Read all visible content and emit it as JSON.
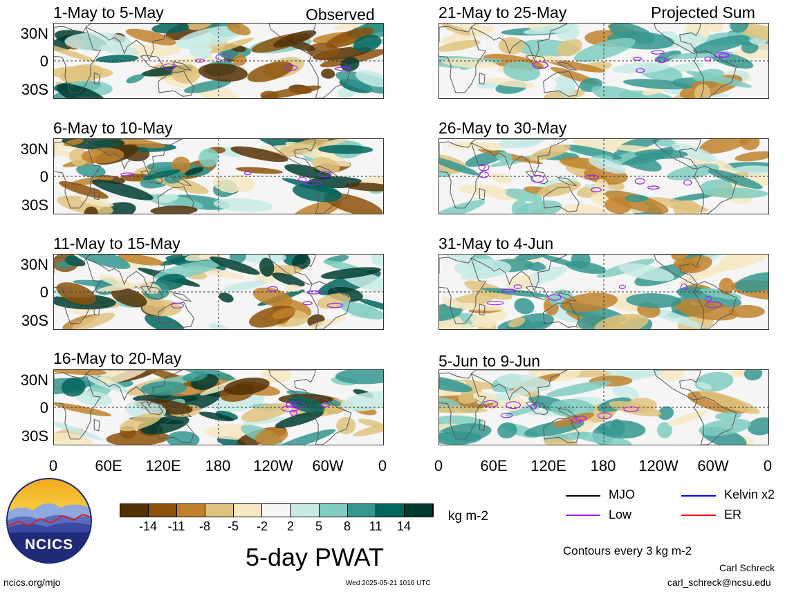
{
  "header": {
    "left_label": "Observed",
    "right_label": "Projected Sum"
  },
  "panels": {
    "left": [
      "1-May to 5-May",
      "6-May to 10-May",
      "11-May to 15-May",
      "16-May to 20-May"
    ],
    "right": [
      "21-May to 25-May",
      "26-May to 30-May",
      "31-May to 4-Jun",
      "5-Jun to 9-Jun"
    ]
  },
  "axes": {
    "lat_labels": [
      "30N",
      "0",
      "30S"
    ],
    "lon_labels": [
      "0",
      "60E",
      "120E",
      "180",
      "120W",
      "60W",
      "0"
    ]
  },
  "colorbar": {
    "ticks": [
      "-14",
      "-11",
      "-8",
      "-5",
      "-2",
      "2",
      "5",
      "8",
      "11",
      "14"
    ],
    "units": "kg m-2",
    "colors": [
      "#543005",
      "#8c510a",
      "#bf812d",
      "#dfc27d",
      "#f6e8c3",
      "#f5f5f5",
      "#c7eae5",
      "#80cdc1",
      "#35978f",
      "#01665e",
      "#003c30"
    ]
  },
  "title": "5-day PWAT",
  "legend": {
    "items": [
      {
        "label": "MJO",
        "color": "#000000"
      },
      {
        "label": "Kelvin x2",
        "color": "#0000ff"
      },
      {
        "label": "Low",
        "color": "#a020f0"
      },
      {
        "label": "ER",
        "color": "#ff0000"
      }
    ],
    "note": "Contours every 3 kg m-2"
  },
  "logo": {
    "text": "NCICS"
  },
  "footer": {
    "left": "ncics.org/mjo",
    "center": "Wed 2025-05-21 1016 UTC",
    "author": "Carl Schreck",
    "email": "carl_schreck@ncsu.edu"
  }
}
